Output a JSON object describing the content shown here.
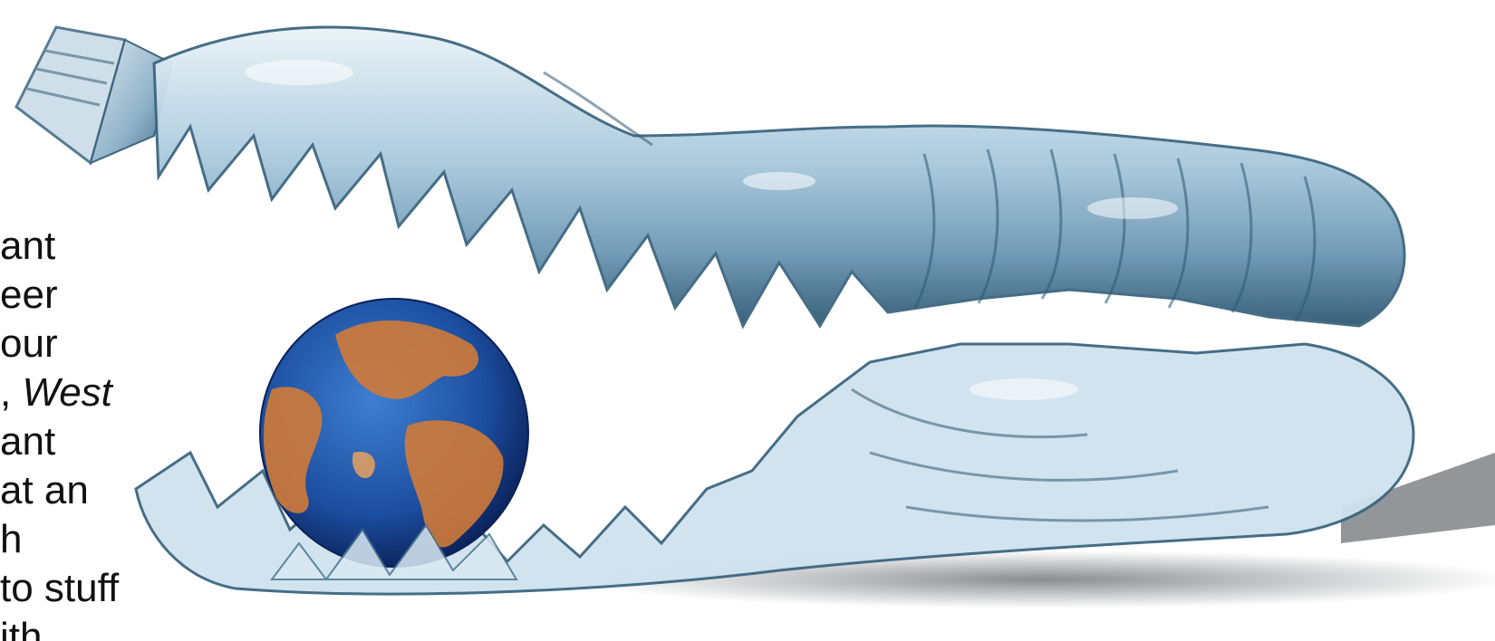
{
  "colors": {
    "background": "#ffffff",
    "text": "#111111",
    "bottle_light": "#d7e8f2",
    "bottle_mid": "#8fb7d0",
    "bottle_dark": "#2c5b78",
    "ocean": "#1c4ea0",
    "land": "#d07a38",
    "shadow": "#2a2f35"
  },
  "illustration": {
    "subject": "crushed-plastic-bottle-swallowing-globe",
    "icons": [
      "bottle-icon",
      "globe-icon",
      "bottle-cap-icon"
    ]
  },
  "text_fragment": {
    "lines": [
      {
        "text": "ant"
      },
      {
        "text": "eer"
      },
      {
        "text": "our"
      },
      {
        "prefix": ", ",
        "emphasis": "West"
      },
      {
        "text": "ant"
      },
      {
        "text": "at an"
      },
      {
        "text": "h"
      },
      {
        "text": "to stuff"
      },
      {
        "text": "ith"
      }
    ]
  }
}
